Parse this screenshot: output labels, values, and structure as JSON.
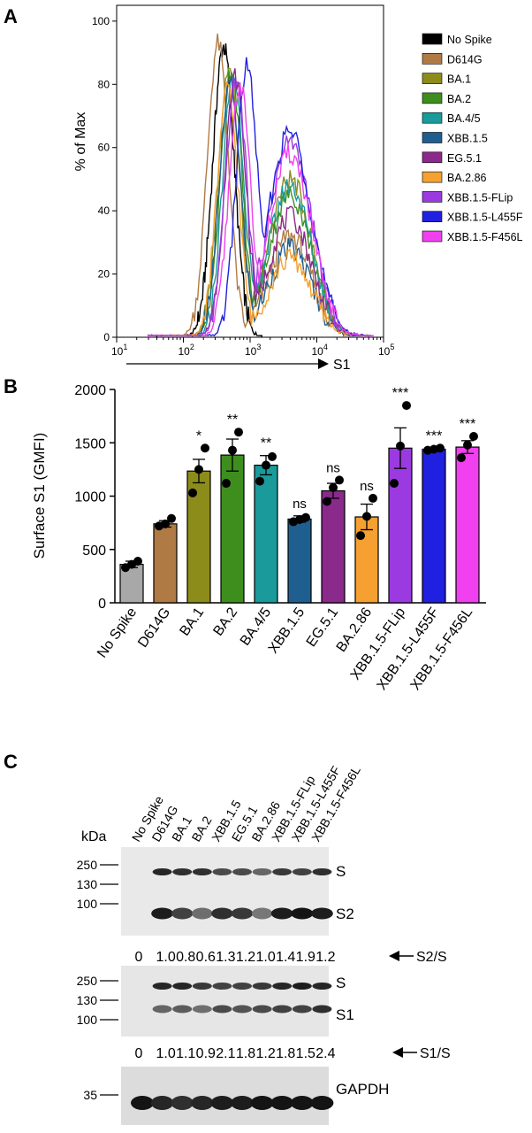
{
  "panels": [
    {
      "label": "A"
    },
    {
      "label": "B"
    },
    {
      "label": "C"
    }
  ],
  "chart_data": [
    {
      "type": "line",
      "panel": "A",
      "xlabel": "S1",
      "ylabel": "% of Max",
      "xscale": "log",
      "xlim": [
        10,
        100000
      ],
      "ylim": [
        0,
        105
      ],
      "xticks": [
        "10",
        "10",
        "10",
        "10",
        "10"
      ],
      "xtick_exponents": [
        "1",
        "2",
        "3",
        "4",
        "5"
      ],
      "yticks": [
        "0",
        "20",
        "40",
        "60",
        "80",
        "100"
      ],
      "legend_position": "right",
      "series": [
        {
          "name": "No Spike",
          "color": "#000000",
          "peak_x": 400,
          "peak_y": 92,
          "shoulder_y": 0,
          "start": 40,
          "end": 1500
        },
        {
          "name": "D614G",
          "color": "#b07a45",
          "peak_x": 330,
          "peak_y": 93,
          "shoulder_y": 32,
          "start": 30,
          "end": 50000
        },
        {
          "name": "BA.1",
          "color": "#8c8c1a",
          "peak_x": 480,
          "peak_y": 85,
          "shoulder_y": 50,
          "start": 30,
          "end": 60000
        },
        {
          "name": "BA.2",
          "color": "#3e8e1e",
          "peak_x": 520,
          "peak_y": 85,
          "shoulder_y": 45,
          "start": 30,
          "end": 60000
        },
        {
          "name": "BA.4/5",
          "color": "#1a9a9a",
          "peak_x": 560,
          "peak_y": 83,
          "shoulder_y": 48,
          "start": 30,
          "end": 60000
        },
        {
          "name": "XBB.1.5",
          "color": "#1f5f8f",
          "peak_x": 500,
          "peak_y": 80,
          "shoulder_y": 28,
          "start": 30,
          "end": 50000
        },
        {
          "name": "EG.5.1",
          "color": "#8a2a8a",
          "peak_x": 600,
          "peak_y": 82,
          "shoulder_y": 38,
          "start": 30,
          "end": 60000
        },
        {
          "name": "BA.2.86",
          "color": "#f5a030",
          "peak_x": 460,
          "peak_y": 78,
          "shoulder_y": 25,
          "start": 30,
          "end": 50000
        },
        {
          "name": "XBB.1.5-FLip",
          "color": "#9a3ae0",
          "peak_x": 620,
          "peak_y": 82,
          "shoulder_y": 62,
          "start": 30,
          "end": 70000
        },
        {
          "name": "XBB.1.5-L455F",
          "color": "#2020e0",
          "peak_x": 900,
          "peak_y": 86,
          "shoulder_y": 65,
          "start": 30,
          "end": 70000
        },
        {
          "name": "XBB.1.5-F456L",
          "color": "#f040f0",
          "peak_x": 700,
          "peak_y": 80,
          "shoulder_y": 58,
          "start": 30,
          "end": 70000
        }
      ]
    },
    {
      "type": "bar",
      "panel": "B",
      "ylabel": "Surface S1 (GMFI)",
      "ylim": [
        0,
        2000
      ],
      "yticks": [
        "0",
        "500",
        "1000",
        "1500",
        "2000"
      ],
      "categories": [
        "No Spike",
        "D614G",
        "BA.1",
        "BA.2",
        "BA.4/5",
        "XBB.1.5",
        "EG.5.1",
        "BA.2.86",
        "XBB.1.5-FLip",
        "XBB.1.5-L455F",
        "XBB.1.5-F456L"
      ],
      "values": [
        360,
        740,
        1235,
        1385,
        1290,
        785,
        1050,
        805,
        1450,
        1440,
        1460
      ],
      "errors": [
        30,
        30,
        110,
        150,
        90,
        30,
        70,
        120,
        190,
        10,
        60
      ],
      "points": [
        [
          330,
          360,
          390
        ],
        [
          720,
          740,
          790
        ],
        [
          1030,
          1250,
          1450
        ],
        [
          1120,
          1430,
          1600
        ],
        [
          1140,
          1290,
          1370
        ],
        [
          760,
          780,
          800
        ],
        [
          950,
          1080,
          1150
        ],
        [
          630,
          810,
          980
        ],
        [
          1120,
          1470,
          1850
        ],
        [
          1430,
          1440,
          1450
        ],
        [
          1360,
          1480,
          1560
        ]
      ],
      "colors": [
        "#a8a8a8",
        "#b07a45",
        "#8c8c1a",
        "#3e8e1e",
        "#1a9a9a",
        "#1f5f8f",
        "#8a2a8a",
        "#f5a030",
        "#9a3ae0",
        "#2020e0",
        "#f040f0"
      ],
      "significance": [
        "",
        "",
        "*",
        "**",
        "**",
        "ns",
        "ns",
        "ns",
        "***",
        "***",
        "***"
      ]
    }
  ],
  "blot": {
    "kda_label": "kDa",
    "lanes": [
      "No Spike",
      "D614G",
      "BA.1",
      "BA.2",
      "XBB.1.5",
      "EG.5.1",
      "BA.2.86",
      "XBB.1.5-FLip",
      "XBB.1.5-L455F",
      "XBB.1.5-F456L"
    ],
    "markers_top": [
      "250",
      "130",
      "100"
    ],
    "markers_mid": [
      "250",
      "130",
      "100"
    ],
    "markers_bottom": [
      "35"
    ],
    "band_labels_top": [
      "S",
      "S2"
    ],
    "band_labels_mid": [
      "S",
      "S1"
    ],
    "band_label_bottom": "GAPDH",
    "ratio_s2_label": "S2/S",
    "ratio_s2": [
      "0",
      "1.0",
      "0.8",
      "0.6",
      "1.3",
      "1.2",
      "1.0",
      "1.4",
      "1.9",
      "1.2"
    ],
    "ratio_s1_label": "S1/S",
    "ratio_s1": [
      "0",
      "1.0",
      "1.1",
      "0.9",
      "2.1",
      "1.8",
      "1.2",
      "1.8",
      "1.5",
      "2.4"
    ],
    "band_intensity_top_s": [
      0,
      0.9,
      0.85,
      0.85,
      0.7,
      0.7,
      0.55,
      0.8,
      0.75,
      0.85
    ],
    "band_intensity_top_s2": [
      0,
      0.95,
      0.75,
      0.5,
      0.85,
      0.8,
      0.45,
      0.95,
      1.0,
      0.95
    ],
    "band_intensity_mid_s": [
      0,
      0.9,
      0.9,
      0.8,
      0.75,
      0.75,
      0.8,
      0.9,
      0.95,
      0.9
    ],
    "band_intensity_mid_s1": [
      0,
      0.55,
      0.6,
      0.5,
      0.7,
      0.65,
      0.7,
      0.75,
      0.75,
      0.85
    ],
    "band_intensity_gapdh": [
      1.0,
      0.9,
      0.85,
      0.9,
      0.95,
      0.95,
      1.0,
      1.0,
      1.0,
      1.0
    ]
  }
}
